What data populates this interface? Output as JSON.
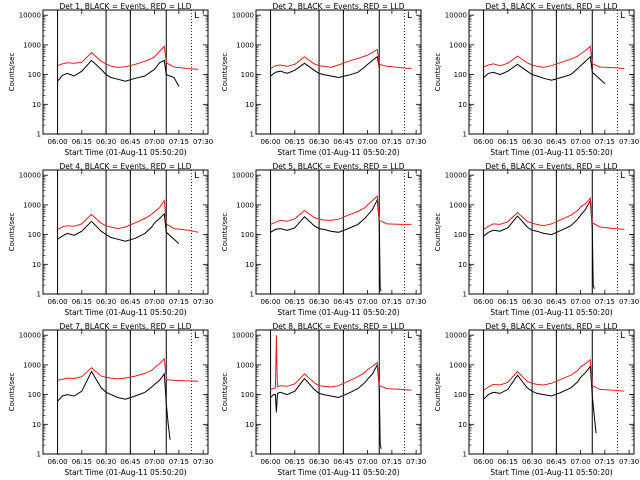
{
  "chart_data": [
    {
      "type": "line",
      "title": "Det 1, BLACK = Events, RED = LLD",
      "xlabel": "Start Time (01-Aug-11 05:50:20)",
      "ylabel": "Counts/sec",
      "yscale": "log",
      "ylim": [
        1,
        10000
      ],
      "xticks": [
        "06:00",
        "06:15",
        "06:30",
        "06:45",
        "07:00",
        "07:15",
        "07:30"
      ],
      "yticks": [
        "1",
        "10",
        "100",
        "1000",
        "10000"
      ],
      "legend_mark": "L",
      "series": [
        {
          "color": "#000000",
          "x": [
            6.0,
            6.05,
            6.1,
            6.17,
            6.25,
            6.35,
            6.45,
            6.5,
            6.55,
            6.62,
            6.7,
            6.8,
            6.9,
            6.97,
            7.0,
            7.05,
            7.1,
            7.12,
            7.2,
            7.25
          ],
          "y": [
            60,
            95,
            110,
            90,
            130,
            300,
            150,
            100,
            80,
            70,
            60,
            75,
            90,
            130,
            150,
            250,
            300,
            100,
            80,
            40
          ]
        },
        {
          "color": "#e02020",
          "x": [
            6.0,
            6.05,
            6.1,
            6.17,
            6.25,
            6.35,
            6.45,
            6.5,
            6.55,
            6.62,
            6.7,
            6.8,
            6.9,
            6.97,
            7.0,
            7.05,
            7.1,
            7.12,
            7.2,
            7.35,
            7.45
          ],
          "y": [
            200,
            230,
            250,
            240,
            260,
            550,
            280,
            230,
            190,
            175,
            185,
            220,
            280,
            350,
            400,
            600,
            900,
            250,
            180,
            160,
            150
          ]
        }
      ]
    },
    {
      "type": "line",
      "title": "Det 2, BLACK = Events, RED = LLD",
      "xlabel": "Start Time (01-Aug-11 05:50:20)",
      "ylabel": "Counts/sec",
      "yscale": "log",
      "ylim": [
        1,
        10000
      ],
      "xticks": [
        "06:00",
        "06:15",
        "06:30",
        "06:45",
        "07:00",
        "07:15",
        "07:30"
      ],
      "yticks": [
        "1",
        "10",
        "100",
        "1000",
        "10000"
      ],
      "legend_mark": "L",
      "series": [
        {
          "color": "#000000",
          "x": [
            6.0,
            6.05,
            6.1,
            6.17,
            6.25,
            6.35,
            6.45,
            6.5,
            6.55,
            6.62,
            6.7,
            6.8,
            6.9,
            6.97,
            7.0,
            7.05,
            7.1,
            7.12
          ],
          "y": [
            90,
            120,
            130,
            110,
            140,
            240,
            140,
            110,
            100,
            90,
            80,
            95,
            120,
            180,
            220,
            300,
            400,
            170
          ]
        },
        {
          "color": "#e02020",
          "x": [
            6.0,
            6.05,
            6.1,
            6.17,
            6.25,
            6.35,
            6.45,
            6.5,
            6.55,
            6.62,
            6.7,
            6.8,
            6.9,
            6.97,
            7.0,
            7.05,
            7.1,
            7.12,
            7.2,
            7.35,
            7.45
          ],
          "y": [
            160,
            200,
            210,
            190,
            220,
            400,
            230,
            200,
            190,
            175,
            210,
            280,
            350,
            420,
            450,
            550,
            700,
            220,
            190,
            170,
            160
          ]
        }
      ]
    },
    {
      "type": "line",
      "title": "Det 3, BLACK = Events, RED = LLD",
      "xlabel": "Start Time (01-Aug-11 05:50:20)",
      "ylabel": "Counts/sec",
      "yscale": "log",
      "ylim": [
        1,
        10000
      ],
      "xticks": [
        "06:00",
        "06:15",
        "06:30",
        "06:45",
        "07:00",
        "07:15",
        "07:30"
      ],
      "yticks": [
        "1",
        "10",
        "100",
        "1000",
        "10000"
      ],
      "legend_mark": "L",
      "series": [
        {
          "color": "#000000",
          "x": [
            6.0,
            6.05,
            6.1,
            6.17,
            6.25,
            6.35,
            6.45,
            6.5,
            6.55,
            6.62,
            6.7,
            6.8,
            6.9,
            6.97,
            7.0,
            7.05,
            7.1,
            7.12,
            7.2,
            7.25
          ],
          "y": [
            80,
            110,
            120,
            100,
            130,
            220,
            130,
            100,
            90,
            75,
            65,
            80,
            100,
            160,
            200,
            280,
            400,
            120,
            70,
            50
          ]
        },
        {
          "color": "#e02020",
          "x": [
            6.0,
            6.05,
            6.1,
            6.17,
            6.25,
            6.35,
            6.45,
            6.5,
            6.55,
            6.62,
            6.7,
            6.8,
            6.9,
            6.97,
            7.0,
            7.05,
            7.1,
            7.12,
            7.2,
            7.35,
            7.45
          ],
          "y": [
            180,
            210,
            230,
            200,
            240,
            420,
            250,
            210,
            190,
            175,
            200,
            260,
            330,
            420,
            500,
            650,
            900,
            230,
            180,
            170,
            160
          ]
        }
      ]
    },
    {
      "type": "line",
      "title": "Det 4, BLACK = Events, RED = LLD",
      "xlabel": "Start Time (01-Aug-11 05:50:20)",
      "ylabel": "Counts/sec",
      "yscale": "log",
      "ylim": [
        1,
        10000
      ],
      "xticks": [
        "06:00",
        "06:15",
        "06:30",
        "06:45",
        "07:00",
        "07:15",
        "07:30"
      ],
      "yticks": [
        "1",
        "10",
        "100",
        "1000",
        "10000"
      ],
      "legend_mark": "L",
      "series": [
        {
          "color": "#000000",
          "x": [
            6.0,
            6.05,
            6.1,
            6.17,
            6.25,
            6.35,
            6.45,
            6.5,
            6.55,
            6.62,
            6.7,
            6.8,
            6.9,
            6.97,
            7.0,
            7.05,
            7.1,
            7.12,
            7.2,
            7.25
          ],
          "y": [
            70,
            90,
            110,
            95,
            130,
            280,
            130,
            100,
            80,
            70,
            60,
            75,
            110,
            180,
            250,
            350,
            500,
            120,
            70,
            50
          ]
        },
        {
          "color": "#e02020",
          "x": [
            6.0,
            6.05,
            6.1,
            6.17,
            6.25,
            6.35,
            6.45,
            6.5,
            6.55,
            6.62,
            6.7,
            6.8,
            6.9,
            6.97,
            7.0,
            7.05,
            7.1,
            7.12,
            7.2,
            7.35,
            7.45
          ],
          "y": [
            150,
            180,
            200,
            190,
            230,
            480,
            240,
            200,
            180,
            160,
            180,
            250,
            350,
            480,
            600,
            800,
            1400,
            230,
            160,
            140,
            120
          ]
        }
      ]
    },
    {
      "type": "line",
      "title": "Det 5, BLACK = Events, RED = LLD",
      "xlabel": "Start Time (01-Aug-11 05:50:20)",
      "ylabel": "Counts/sec",
      "yscale": "log",
      "ylim": [
        1,
        10000
      ],
      "xticks": [
        "06:00",
        "06:15",
        "06:30",
        "06:45",
        "07:00",
        "07:15",
        "07:30"
      ],
      "yticks": [
        "1",
        "10",
        "100",
        "1000",
        "10000"
      ],
      "legend_mark": "L",
      "series": [
        {
          "color": "#000000",
          "x": [
            6.0,
            6.05,
            6.1,
            6.17,
            6.25,
            6.35,
            6.45,
            6.5,
            6.55,
            6.62,
            6.7,
            6.8,
            6.9,
            6.97,
            7.0,
            7.05,
            7.1,
            7.12,
            7.13,
            7.14
          ],
          "y": [
            120,
            150,
            160,
            140,
            170,
            400,
            200,
            160,
            150,
            130,
            120,
            160,
            220,
            350,
            450,
            700,
            1500,
            250,
            1.5,
            1.2
          ]
        },
        {
          "color": "#e02020",
          "x": [
            6.0,
            6.05,
            6.1,
            6.17,
            6.25,
            6.35,
            6.45,
            6.5,
            6.55,
            6.62,
            6.7,
            6.8,
            6.9,
            6.97,
            7.0,
            7.05,
            7.1,
            7.12,
            7.2,
            7.35,
            7.45
          ],
          "y": [
            220,
            260,
            300,
            280,
            340,
            650,
            380,
            330,
            310,
            300,
            330,
            450,
            600,
            800,
            1000,
            1400,
            2000,
            300,
            230,
            220,
            220
          ]
        }
      ]
    },
    {
      "type": "line",
      "title": "Det 6, BLACK = Events, RED = LLD",
      "xlabel": "Start Time (01-Aug-11 05:50:20)",
      "ylabel": "Counts/sec",
      "yscale": "log",
      "ylim": [
        1,
        10000
      ],
      "xticks": [
        "06:00",
        "06:15",
        "06:30",
        "06:45",
        "07:00",
        "07:15",
        "07:30"
      ],
      "yticks": [
        "1",
        "10",
        "100",
        "1000",
        "10000"
      ],
      "legend_mark": "L",
      "series": [
        {
          "color": "#000000",
          "x": [
            6.0,
            6.05,
            6.1,
            6.17,
            6.25,
            6.35,
            6.45,
            6.5,
            6.55,
            6.62,
            6.7,
            6.8,
            6.9,
            6.97,
            7.0,
            7.05,
            7.1,
            7.12,
            7.13,
            7.14
          ],
          "y": [
            90,
            120,
            140,
            130,
            170,
            420,
            180,
            140,
            130,
            110,
            100,
            140,
            200,
            330,
            450,
            700,
            1400,
            160,
            2,
            1.5
          ]
        },
        {
          "color": "#e02020",
          "x": [
            6.0,
            6.05,
            6.1,
            6.17,
            6.25,
            6.35,
            6.45,
            6.5,
            6.55,
            6.62,
            6.7,
            6.8,
            6.9,
            6.97,
            7.0,
            7.05,
            7.1,
            7.12,
            7.2,
            7.35,
            7.45
          ],
          "y": [
            150,
            190,
            230,
            220,
            270,
            550,
            280,
            240,
            220,
            200,
            230,
            320,
            450,
            650,
            850,
            1100,
            1700,
            250,
            180,
            160,
            150
          ]
        }
      ]
    },
    {
      "type": "line",
      "title": "Det 7, BLACK = Events, RED = LLD",
      "xlabel": "Start Time (01-Aug-11 05:50:20)",
      "ylabel": "Counts/sec",
      "yscale": "log",
      "ylim": [
        1,
        10000
      ],
      "xticks": [
        "06:00",
        "06:15",
        "06:30",
        "06:45",
        "07:00",
        "07:15",
        "07:30"
      ],
      "yticks": [
        "1",
        "10",
        "100",
        "1000",
        "10000"
      ],
      "legend_mark": "L",
      "series": [
        {
          "color": "#000000",
          "x": [
            6.0,
            6.05,
            6.1,
            6.17,
            6.25,
            6.35,
            6.45,
            6.5,
            6.55,
            6.62,
            6.7,
            6.8,
            6.9,
            6.97,
            7.0,
            7.05,
            7.1,
            7.12,
            7.14,
            7.16
          ],
          "y": [
            60,
            90,
            100,
            90,
            130,
            600,
            170,
            120,
            100,
            80,
            70,
            90,
            120,
            180,
            220,
            300,
            500,
            50,
            10,
            3
          ]
        },
        {
          "color": "#e02020",
          "x": [
            6.0,
            6.05,
            6.1,
            6.17,
            6.25,
            6.35,
            6.45,
            6.5,
            6.55,
            6.62,
            6.7,
            6.8,
            6.9,
            6.97,
            7.0,
            7.05,
            7.1,
            7.12,
            7.2,
            7.35,
            7.45
          ],
          "y": [
            300,
            330,
            360,
            350,
            400,
            800,
            420,
            380,
            360,
            340,
            360,
            420,
            520,
            650,
            800,
            1100,
            1600,
            320,
            300,
            290,
            280
          ]
        }
      ]
    },
    {
      "type": "line",
      "title": "Det 8, BLACK = Events, RED = LLD",
      "xlabel": "Start Time (01-Aug-11 05:50:20)",
      "ylabel": "Counts/sec",
      "yscale": "log",
      "ylim": [
        1,
        10000
      ],
      "xticks": [
        "06:00",
        "06:15",
        "06:30",
        "06:45",
        "07:00",
        "07:15",
        "07:30"
      ],
      "yticks": [
        "1",
        "10",
        "100",
        "1000",
        "10000"
      ],
      "legend_mark": "L",
      "series": [
        {
          "color": "#000000",
          "x": [
            6.0,
            6.03,
            6.05,
            6.06,
            6.07,
            6.1,
            6.17,
            6.25,
            6.35,
            6.45,
            6.5,
            6.55,
            6.62,
            6.7,
            6.8,
            6.9,
            6.97,
            7.0,
            7.05,
            7.1,
            7.12,
            7.13,
            7.14
          ],
          "y": [
            80,
            100,
            100,
            25,
            110,
            120,
            100,
            130,
            350,
            150,
            110,
            100,
            90,
            80,
            110,
            160,
            250,
            330,
            500,
            1000,
            160,
            2,
            1.5
          ]
        },
        {
          "color": "#e02020",
          "x": [
            6.0,
            6.03,
            6.05,
            6.06,
            6.07,
            6.1,
            6.17,
            6.25,
            6.35,
            6.45,
            6.5,
            6.55,
            6.62,
            6.7,
            6.8,
            6.9,
            6.97,
            7.0,
            7.05,
            7.1,
            7.12,
            7.2,
            7.35,
            7.45
          ],
          "y": [
            150,
            160,
            170,
            10000,
            180,
            200,
            190,
            230,
            500,
            250,
            200,
            190,
            180,
            200,
            280,
            400,
            550,
            700,
            900,
            1200,
            200,
            160,
            150,
            140
          ]
        }
      ]
    },
    {
      "type": "line",
      "title": "Det 9, BLACK = Events, RED = LLD",
      "xlabel": "Start Time (01-Aug-11 05:50:20)",
      "ylabel": "Counts/sec",
      "yscale": "log",
      "ylim": [
        1,
        10000
      ],
      "xticks": [
        "06:00",
        "06:15",
        "06:30",
        "06:45",
        "07:00",
        "07:15",
        "07:30"
      ],
      "yticks": [
        "1",
        "10",
        "100",
        "1000",
        "10000"
      ],
      "legend_mark": "L",
      "series": [
        {
          "color": "#000000",
          "x": [
            6.0,
            6.05,
            6.1,
            6.17,
            6.25,
            6.35,
            6.45,
            6.5,
            6.55,
            6.62,
            6.7,
            6.8,
            6.9,
            6.97,
            7.0,
            7.05,
            7.1,
            7.12,
            7.14,
            7.16
          ],
          "y": [
            70,
            100,
            120,
            110,
            150,
            450,
            170,
            130,
            110,
            100,
            90,
            120,
            170,
            270,
            380,
            550,
            900,
            90,
            20,
            5
          ]
        },
        {
          "color": "#e02020",
          "x": [
            6.0,
            6.05,
            6.1,
            6.17,
            6.25,
            6.35,
            6.45,
            6.5,
            6.55,
            6.62,
            6.7,
            6.8,
            6.9,
            6.97,
            7.0,
            7.05,
            7.1,
            7.12,
            7.2,
            7.35,
            7.45
          ],
          "y": [
            140,
            180,
            220,
            210,
            260,
            600,
            280,
            240,
            220,
            210,
            240,
            330,
            450,
            650,
            850,
            1100,
            1500,
            200,
            150,
            140,
            130
          ]
        }
      ]
    }
  ]
}
